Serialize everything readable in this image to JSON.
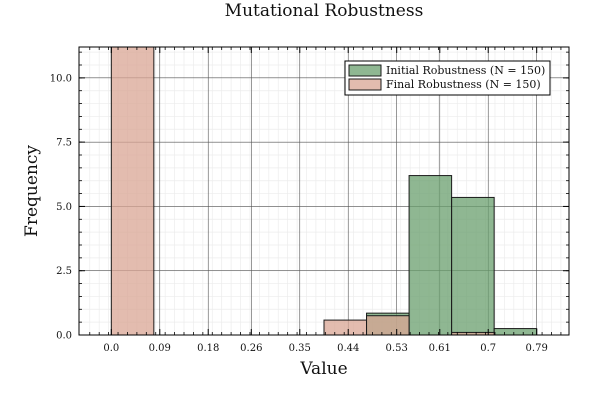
{
  "chart_data": {
    "type": "bar",
    "title": "Mutational Robustness",
    "xlabel": "Value",
    "ylabel": "Frequency",
    "xlim": [
      -0.06,
      0.85
    ],
    "ylim": [
      0,
      11.2
    ],
    "x_ticks": [
      0.0,
      0.09,
      0.18,
      0.26,
      0.35,
      0.44,
      0.53,
      0.61,
      0.7,
      0.79
    ],
    "x_tick_labels": [
      "0.0",
      "0.09",
      "0.18",
      "0.26",
      "0.35",
      "0.44",
      "0.53",
      "0.61",
      "0.7",
      "0.79"
    ],
    "y_ticks": [
      0,
      2.5,
      5.0,
      7.5,
      10.0
    ],
    "y_tick_labels": [
      "0.0",
      "2.5",
      "5.0",
      "7.5",
      "10.0"
    ],
    "grid": true,
    "legend_position": "top-right",
    "bin_edges": [
      0.0,
      0.079,
      0.158,
      0.237,
      0.316,
      0.395,
      0.474,
      0.553,
      0.632,
      0.711,
      0.79
    ],
    "series": [
      {
        "name": "Initial Robustness (N = 150)",
        "color": "#6a9f6e",
        "values": [
          0,
          0,
          0,
          0,
          0,
          0,
          0.85,
          6.2,
          5.35,
          0.25
        ]
      },
      {
        "name": "Final Robustness (N = 150)",
        "color": "#d9a594",
        "values": [
          11.2,
          0,
          0,
          0,
          0,
          0.58,
          0.75,
          0,
          0.1,
          0
        ]
      }
    ]
  }
}
